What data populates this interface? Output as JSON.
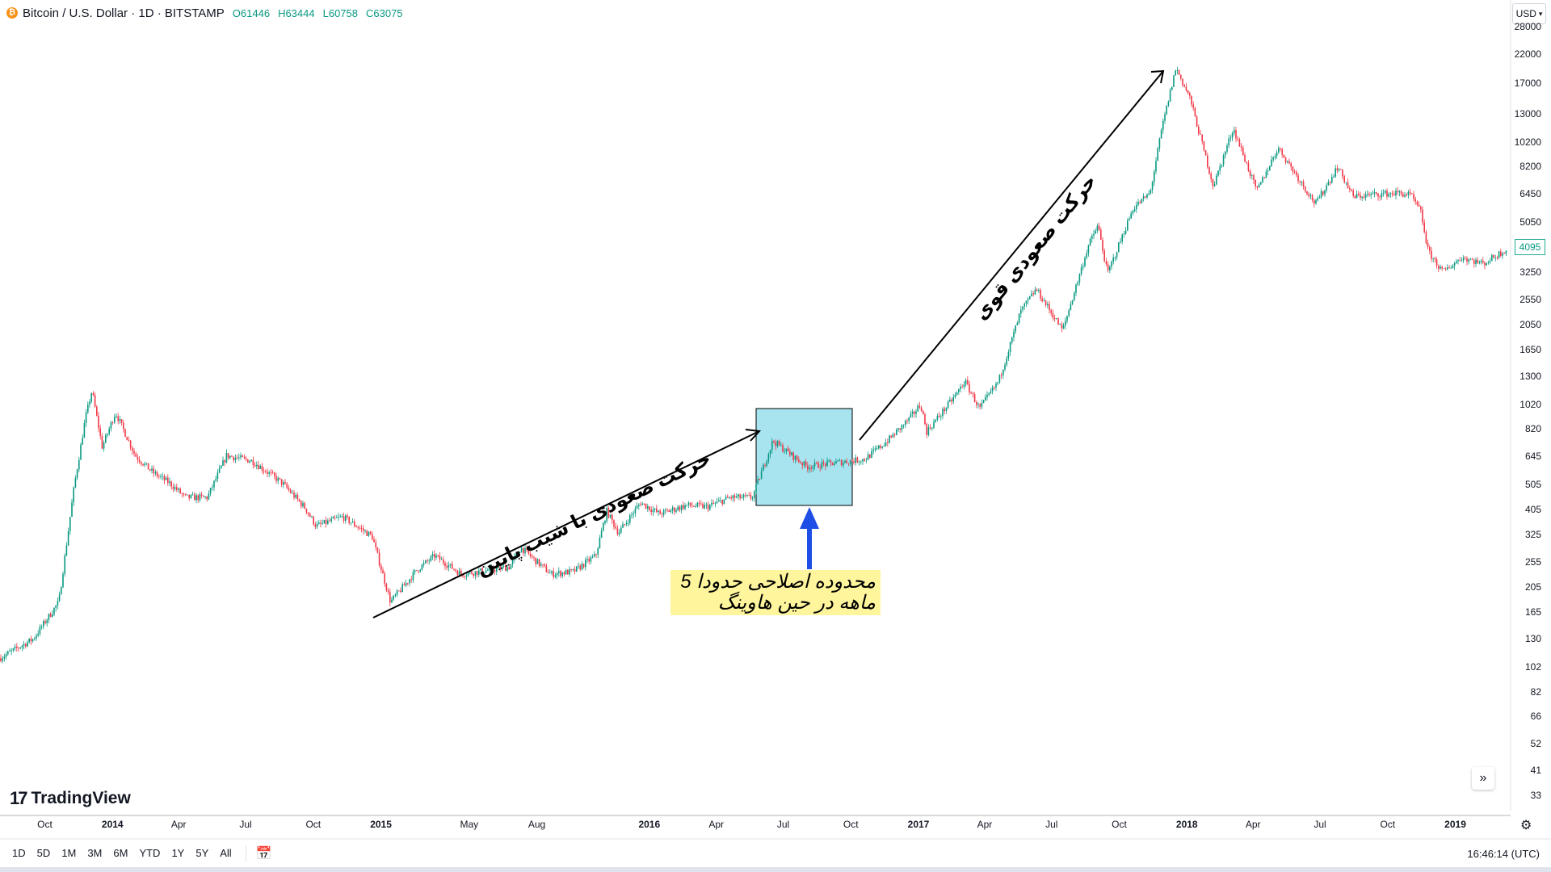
{
  "header": {
    "title": "Bitcoin / U.S. Dollar · 1D · BITSTAMP",
    "open_label": "O",
    "open": "61446",
    "high_label": "H",
    "high": "63444",
    "low_label": "L",
    "low": "60758",
    "close_label": "C",
    "close": "63075",
    "coin_symbol": "₿"
  },
  "price_axis": {
    "currency": "USD",
    "current_price": "4095",
    "ticks": [
      "28000",
      "22000",
      "17000",
      "13000",
      "10200",
      "8200",
      "6450",
      "5050",
      "4095",
      "3250",
      "2550",
      "2050",
      "1650",
      "1300",
      "1020",
      "820",
      "645",
      "505",
      "405",
      "325",
      "255",
      "205",
      "165",
      "130",
      "102",
      "82",
      "66",
      "52",
      "41",
      "33"
    ]
  },
  "time_axis": {
    "ticks": [
      {
        "label": "Oct",
        "major": false
      },
      {
        "label": "2014",
        "major": true
      },
      {
        "label": "Apr",
        "major": false
      },
      {
        "label": "Jul",
        "major": false
      },
      {
        "label": "Oct",
        "major": false
      },
      {
        "label": "2015",
        "major": true
      },
      {
        "label": "May",
        "major": false
      },
      {
        "label": "Aug",
        "major": false
      },
      {
        "label": "2016",
        "major": true
      },
      {
        "label": "Apr",
        "major": false
      },
      {
        "label": "Jul",
        "major": false
      },
      {
        "label": "Oct",
        "major": false
      },
      {
        "label": "2017",
        "major": true
      },
      {
        "label": "Apr",
        "major": false
      },
      {
        "label": "Jul",
        "major": false
      },
      {
        "label": "Oct",
        "major": false
      },
      {
        "label": "2018",
        "major": true
      },
      {
        "label": "Apr",
        "major": false
      },
      {
        "label": "Jul",
        "major": false
      },
      {
        "label": "Oct",
        "major": false
      },
      {
        "label": "2019",
        "major": true
      }
    ]
  },
  "annotations": {
    "slow_uptrend": "حرکت صعودی با شیب پایین",
    "strong_uptrend": "حرکت صعودی قوی",
    "note_line1": "محدوده اصلاحی حدودا 5",
    "note_line2": "ماهه در حین هاوینگ"
  },
  "branding": {
    "logo_mark": "17",
    "logo_text": "TradingView"
  },
  "bottom_bar": {
    "ranges": [
      "1D",
      "5D",
      "1M",
      "3M",
      "6M",
      "YTD",
      "1Y",
      "5Y",
      "All"
    ],
    "time": "16:46:14 (UTC)"
  },
  "colors": {
    "up": "#089981",
    "down": "#f23645",
    "box_fill": "#a8e4f0",
    "note_fill": "#fff59d",
    "arrow_blue": "#1f4ee6"
  },
  "chart_data": {
    "type": "candlestick",
    "title": "Bitcoin / U.S. Dollar · 1D · BITSTAMP",
    "scale": "log",
    "ylim": [
      30,
      30000
    ],
    "grid": false,
    "series": [
      {
        "name": "BTCUSD",
        "x": [
          "2013-08-01",
          "2013-09-15",
          "2013-10-20",
          "2013-11-10",
          "2013-11-25",
          "2013-12-04",
          "2013-12-18",
          "2014-01-05",
          "2014-02-01",
          "2014-02-25",
          "2014-03-20",
          "2014-04-10",
          "2014-05-10",
          "2014-06-05",
          "2014-07-10",
          "2014-08-20",
          "2014-09-20",
          "2014-10-05",
          "2014-11-10",
          "2014-12-20",
          "2015-01-14",
          "2015-02-20",
          "2015-03-15",
          "2015-04-20",
          "2015-05-20",
          "2015-06-25",
          "2015-07-10",
          "2015-08-20",
          "2015-09-20",
          "2015-10-20",
          "2015-11-04",
          "2015-11-20",
          "2015-12-20",
          "2016-01-15",
          "2016-02-20",
          "2016-03-20",
          "2016-04-20",
          "2016-05-20",
          "2016-06-17",
          "2016-07-10",
          "2016-08-02",
          "2016-09-10",
          "2016-10-20",
          "2016-11-20",
          "2016-12-20",
          "2017-01-04",
          "2017-01-12",
          "2017-02-20",
          "2017-03-05",
          "2017-03-25",
          "2017-04-20",
          "2017-05-20",
          "2017-06-10",
          "2017-07-16",
          "2017-08-20",
          "2017-09-02",
          "2017-09-15",
          "2017-10-20",
          "2017-11-12",
          "2017-11-28",
          "2017-12-17",
          "2018-01-05",
          "2018-02-06",
          "2018-03-05",
          "2018-04-06",
          "2018-05-05",
          "2018-06-25",
          "2018-07-25",
          "2018-08-15",
          "2018-09-20",
          "2018-10-15",
          "2018-11-01",
          "2018-11-15",
          "2018-11-25",
          "2018-12-15",
          "2019-01-10",
          "2019-02-08",
          "2019-03-10"
        ],
        "values": [
          110,
          130,
          180,
          500,
          900,
          1150,
          700,
          950,
          650,
          560,
          510,
          450,
          450,
          650,
          620,
          510,
          410,
          350,
          380,
          320,
          180,
          240,
          270,
          230,
          236,
          245,
          290,
          230,
          235,
          270,
          400,
          330,
          430,
          390,
          420,
          415,
          450,
          450,
          740,
          660,
          590,
          610,
          630,
          740,
          900,
          1020,
          800,
          1100,
          1250,
          980,
          1250,
          2300,
          2800,
          1950,
          4100,
          4900,
          3200,
          5700,
          6500,
          11500,
          19500,
          15000,
          6900,
          11500,
          6600,
          9700,
          5900,
          8200,
          6300,
          6450,
          6500,
          6400,
          5500,
          3900,
          3250,
          3700,
          3500,
          3950
        ]
      }
    ],
    "annotations": [
      {
        "type": "arrow",
        "from": [
          "2015-01-14",
          160
        ],
        "to": [
          "2016-06-17",
          770
        ],
        "label": "حرکت صعودی با شیب پایین"
      },
      {
        "type": "arrow",
        "from": [
          "2016-10-20",
          700
        ],
        "to": [
          "2017-12-17",
          19500
        ],
        "label": "حرکت صعودی قوی"
      },
      {
        "type": "rectangle",
        "from": [
          "2016-06-17",
          1000
        ],
        "to": [
          "2016-10-20",
          420
        ]
      },
      {
        "type": "note",
        "text": "محدوده اصلاحی حدودا 5 ماهه در حین هاوینگ"
      }
    ]
  }
}
